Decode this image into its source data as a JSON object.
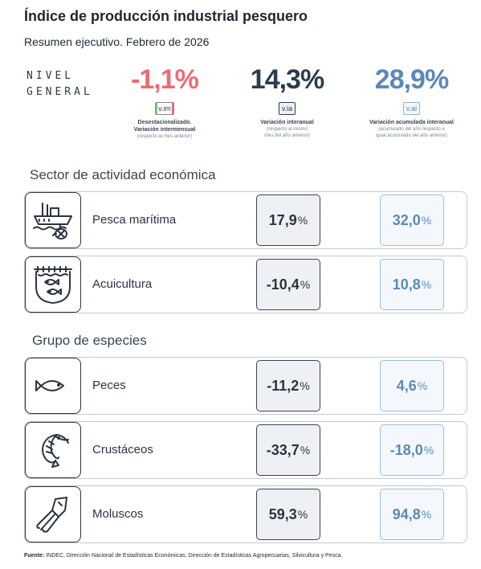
{
  "title": "Índice de producción industrial pesquero",
  "subtitle": "Resumen ejecutivo. Febrero de 2026",
  "nivel": {
    "line1": "NIVEL",
    "line2": "GENERAL"
  },
  "kpis": [
    {
      "value": "-1,1%",
      "tag": "v.im",
      "label1": "Desestacionalizado.",
      "label2": "Variación intermensual",
      "sub1": "(respecto al mes anterior)",
      "sub2": "",
      "color": "#ec6b73"
    },
    {
      "value": "14,3%",
      "tag": "v.ia",
      "label1": "Variación interanual",
      "label2": "",
      "sub1": "(respecto al mismo",
      "sub2": "mes del año anterior)",
      "color": "#2d3b4f"
    },
    {
      "value": "28,9%",
      "tag": "v.ai",
      "label1": "Variación acumulada interanual",
      "label2": "",
      "sub1": "(acumulado del año respecto a",
      "sub2": "igual acumulado del año anterior)",
      "color": "#5c88b7"
    }
  ],
  "sections": {
    "sector": "Sector de actividad económica",
    "grupo": "Grupo de especies"
  },
  "rows": [
    {
      "label": "Pesca marítima",
      "ia": "17,9",
      "ai": "32,0",
      "icon": "fishing-boat-icon"
    },
    {
      "label": "Acuicultura",
      "ia": "-10,4",
      "ai": "10,8",
      "icon": "aquaculture-net-icon"
    },
    {
      "label": "Peces",
      "ia": "-11,2",
      "ai": "4,6",
      "icon": "fish-icon"
    },
    {
      "label": "Crustáceos",
      "ia": "-33,7",
      "ai": "-18,0",
      "icon": "shrimp-icon"
    },
    {
      "label": "Moluscos",
      "ia": "59,3",
      "ai": "94,8",
      "icon": "squid-icon"
    }
  ],
  "pct": "%",
  "footer": {
    "label": "Fuente:",
    "text": " INDEC, Dirección Nacional de Estadísticas Económicas. Dirección de Estadísticas Agropecuarias, Silvicultura y Pesca."
  }
}
